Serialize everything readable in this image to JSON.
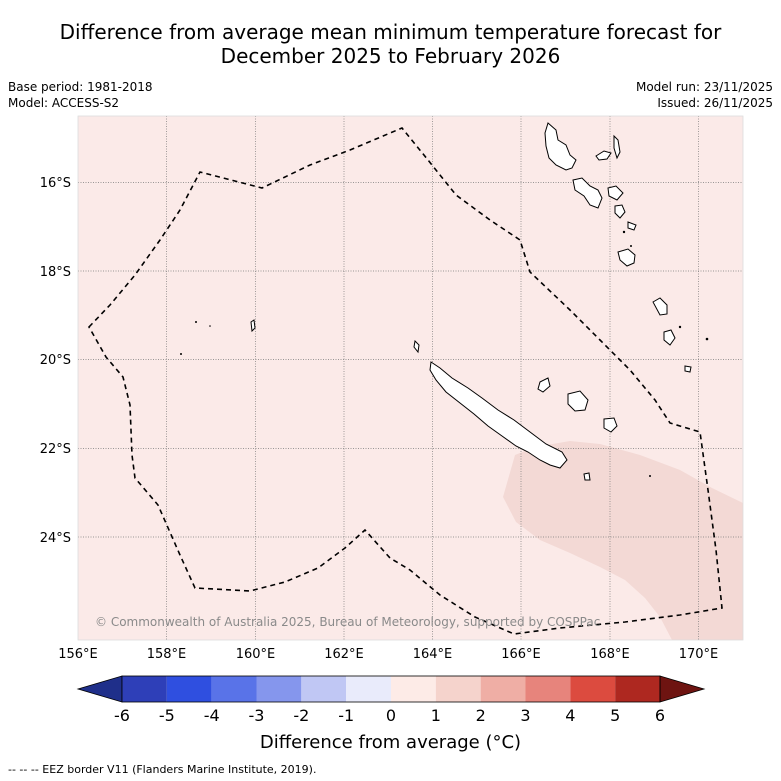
{
  "header": {
    "title_line1": "Difference from average mean minimum temperature forecast for",
    "title_line2": "December 2025 to February 2026",
    "base_period": "Base period: 1981-2018",
    "model": "Model: ACCESS-S2",
    "model_run": "Model run: 23/11/2025",
    "issued": "Issued: 26/11/2025"
  },
  "map": {
    "lat_labels": [
      "16°S",
      "18°S",
      "20°S",
      "22°S",
      "24°S"
    ],
    "lon_labels": [
      "156°E",
      "158°E",
      "160°E",
      "162°E",
      "164°E",
      "166°E",
      "168°E",
      "170°E"
    ],
    "copyright": "© Commonwealth of Australia 2025, Bureau of Meteorology, supported by COSPPac",
    "background_color": "#fbeae8",
    "anomaly_region_color": "#f3d9d5"
  },
  "colorbar": {
    "ticks": [
      "-6",
      "-5",
      "-4",
      "-3",
      "-2",
      "-1",
      "0",
      "1",
      "2",
      "3",
      "4",
      "5",
      "6"
    ],
    "colors": [
      "#1f2f8a",
      "#2e3fb8",
      "#2f4fe0",
      "#5973e8",
      "#8596ed",
      "#c0c7f4",
      "#e9ebfb",
      "#fdebe7",
      "#f5d3cc",
      "#efaea5",
      "#e7847c",
      "#dc4b3f",
      "#ae2820",
      "#6e1411"
    ],
    "title": "Difference from average (°C)"
  },
  "legend": {
    "eez": "--  --  -- EEZ border V11 (Flanders Marine Institute, 2019)."
  }
}
